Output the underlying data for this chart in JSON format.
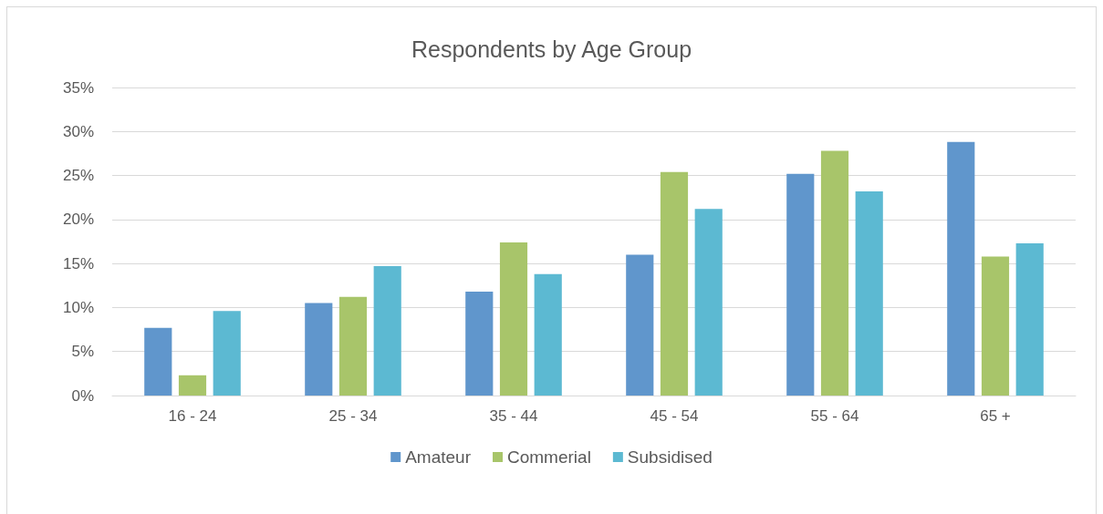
{
  "chart_data": {
    "type": "bar",
    "title": "Respondents by Age Group",
    "categories": [
      "16 - 24",
      "25 - 34",
      "35 - 44",
      "45 - 54",
      "55 - 64",
      "65 +"
    ],
    "series": [
      {
        "name": "Amateur",
        "color": "#6096cc",
        "values": [
          7.7,
          10.5,
          11.8,
          16.0,
          25.2,
          28.8
        ]
      },
      {
        "name": "Commerial",
        "color": "#a8c56a",
        "values": [
          2.3,
          11.2,
          17.4,
          25.4,
          27.8,
          15.8
        ]
      },
      {
        "name": "Subsidised",
        "color": "#5cb9d2",
        "values": [
          9.6,
          14.7,
          13.8,
          21.2,
          23.2,
          17.3
        ]
      }
    ],
    "ylim": [
      0,
      35
    ],
    "yticks": [
      {
        "value": 0,
        "label": "0%"
      },
      {
        "value": 5,
        "label": "5%"
      },
      {
        "value": 10,
        "label": "10%"
      },
      {
        "value": 15,
        "label": "15%"
      },
      {
        "value": 20,
        "label": "20%"
      },
      {
        "value": 25,
        "label": "25%"
      },
      {
        "value": 30,
        "label": "30%"
      },
      {
        "value": 35,
        "label": "35%"
      }
    ],
    "grid": "y",
    "legend": "bottom"
  }
}
